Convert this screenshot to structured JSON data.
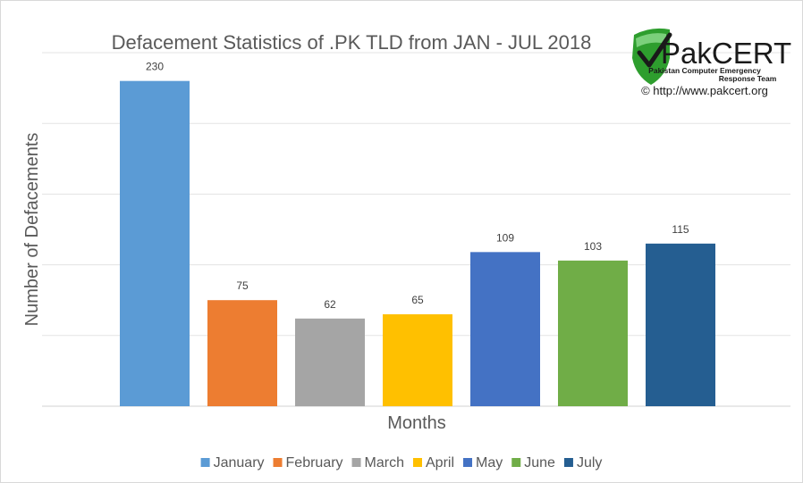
{
  "chart_data": {
    "type": "bar",
    "title": "Defacement Statistics of .PK TLD from JAN - JUL 2018",
    "xlabel": "Months",
    "ylabel": "Number of Defacements",
    "ylim": [
      0,
      250
    ],
    "grid": true,
    "legend_position": "bottom",
    "categories": [
      "January",
      "February",
      "March",
      "April",
      "May",
      "June",
      "July"
    ],
    "values": [
      230,
      75,
      62,
      65,
      109,
      103,
      115
    ],
    "colors": [
      "#5b9bd5",
      "#ed7d31",
      "#a5a5a5",
      "#ffc000",
      "#4472c4",
      "#70ad47",
      "#255e91"
    ]
  },
  "logo": {
    "name": "PakCERT",
    "subtitle_line1": "Pakistan Computer Emergency",
    "subtitle_line2": "Response Team",
    "url": "© http://www.pakcert.org",
    "shield_icon": "shield-check-icon",
    "shield_color": "#2e9e2e"
  }
}
